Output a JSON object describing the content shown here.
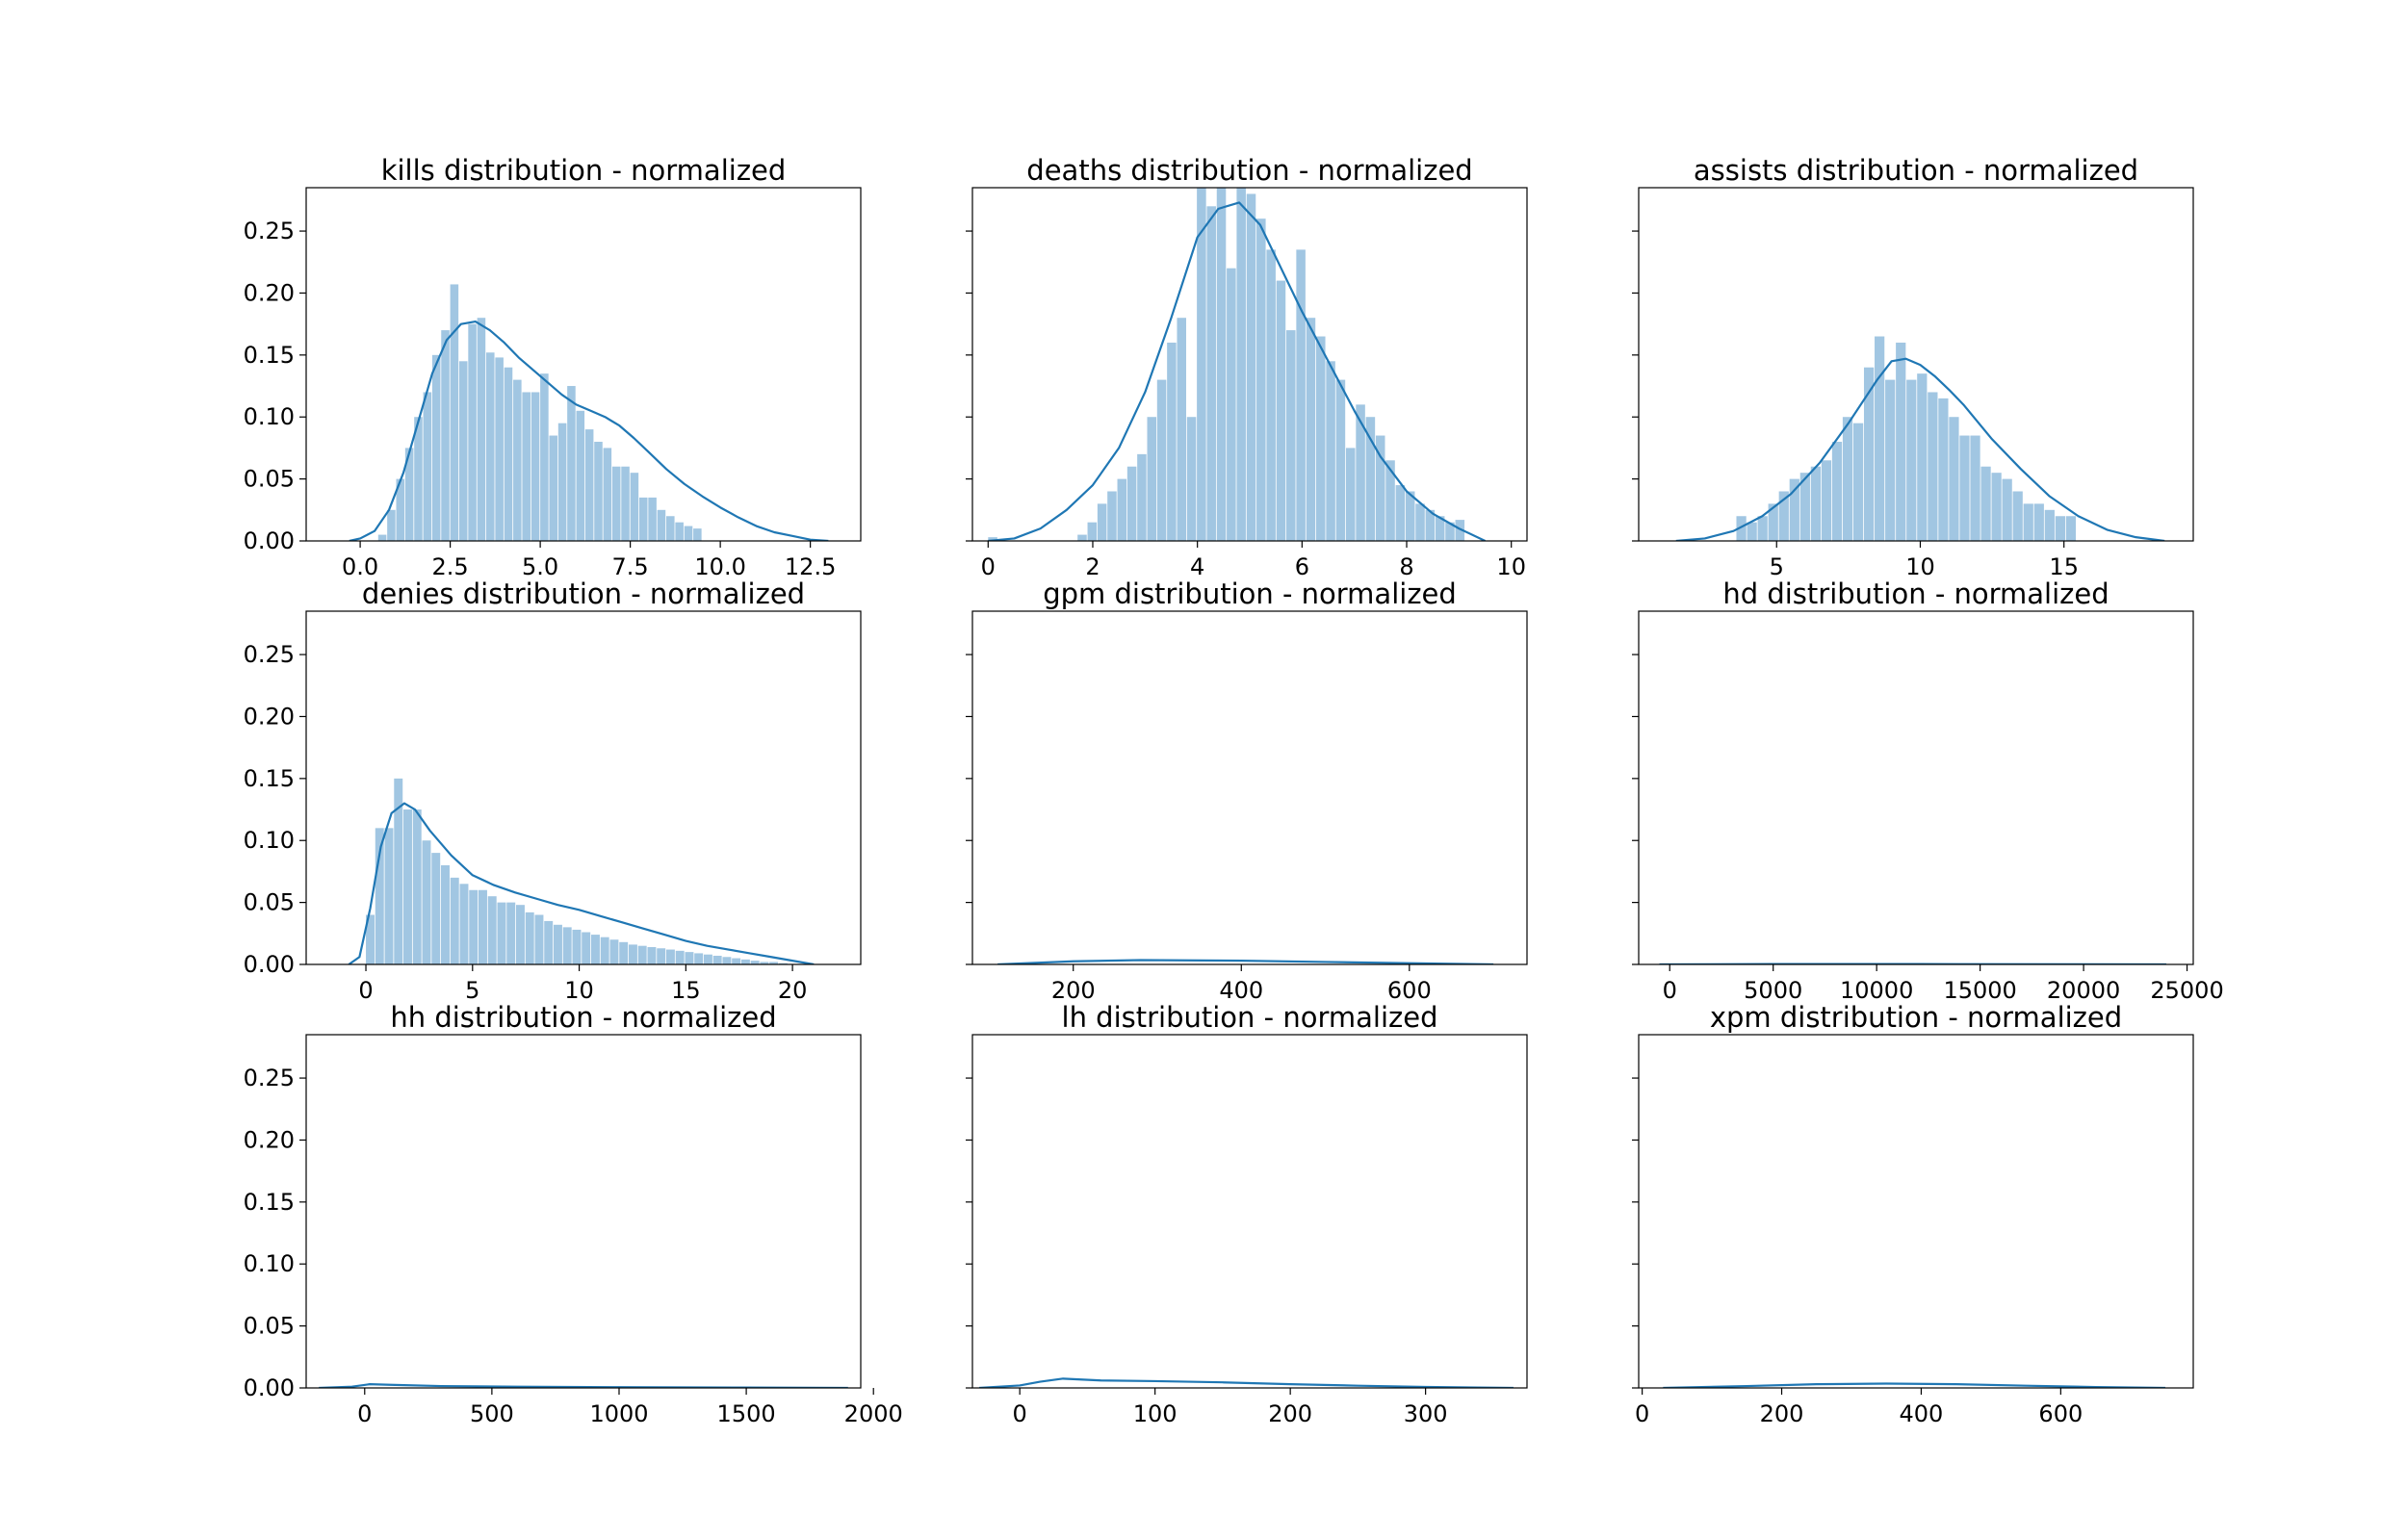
{
  "chart_data": [
    {
      "type": "histogram",
      "title": "kills distribution - normalized",
      "xlim": [
        -1.5,
        13.9
      ],
      "ylim": [
        0,
        0.285
      ],
      "xticks": [
        0,
        2.5,
        5,
        7.5,
        10,
        12.5
      ],
      "xtick_labels": [
        "0.0",
        "2.5",
        "5.0",
        "7.5",
        "10.0",
        "12.5"
      ],
      "yticks": [
        0,
        0.05,
        0.1,
        0.15,
        0.2,
        0.25
      ],
      "ytick_labels": [
        "0.00",
        "0.05",
        "0.10",
        "0.15",
        "0.20",
        "0.25"
      ],
      "bins": {
        "start": 0.5,
        "width": 0.25,
        "heights": [
          0.005,
          0.025,
          0.05,
          0.075,
          0.1,
          0.12,
          0.15,
          0.17,
          0.207,
          0.145,
          0.175,
          0.18,
          0.152,
          0.148,
          0.14,
          0.13,
          0.12,
          0.12,
          0.135,
          0.085,
          0.095,
          0.125,
          0.105,
          0.09,
          0.08,
          0.075,
          0.06,
          0.06,
          0.055,
          0.035,
          0.035,
          0.025,
          0.02,
          0.015,
          0.012,
          0.01
        ]
      },
      "kde": {
        "x": [
          -0.3,
          0.0,
          0.4,
          0.8,
          1.2,
          1.6,
          2.0,
          2.4,
          2.8,
          3.2,
          3.6,
          4.0,
          4.4,
          4.8,
          5.2,
          5.6,
          6.0,
          6.4,
          6.8,
          7.2,
          7.6,
          8.0,
          8.5,
          9.0,
          9.5,
          10.0,
          10.5,
          11.0,
          11.5,
          12.0,
          12.5,
          13.0
        ],
        "y": [
          0.0,
          0.002,
          0.008,
          0.025,
          0.055,
          0.095,
          0.135,
          0.162,
          0.175,
          0.177,
          0.17,
          0.16,
          0.148,
          0.138,
          0.128,
          0.118,
          0.11,
          0.105,
          0.1,
          0.093,
          0.083,
          0.072,
          0.058,
          0.046,
          0.036,
          0.027,
          0.019,
          0.012,
          0.007,
          0.004,
          0.001,
          0.0
        ]
      }
    },
    {
      "type": "histogram",
      "title": "deaths distribution - normalized",
      "xlim": [
        -0.3,
        10.3
      ],
      "ylim": [
        0,
        0.285
      ],
      "xticks": [
        0,
        2,
        4,
        6,
        8,
        10
      ],
      "xtick_labels": [
        "0",
        "2",
        "4",
        "6",
        "8",
        "10"
      ],
      "yticks": [
        0,
        0.05,
        0.1,
        0.15,
        0.2,
        0.25
      ],
      "ytick_labels": [
        "",
        "",
        "",
        "",
        "",
        ""
      ],
      "bins": {
        "start": 0.0,
        "width": 0.19,
        "heights": [
          0.003,
          0.0,
          0.0,
          0.0,
          0.0,
          0.0,
          0.0,
          0.0,
          0.0,
          0.005,
          0.015,
          0.03,
          0.04,
          0.05,
          0.06,
          0.07,
          0.1,
          0.13,
          0.16,
          0.18,
          0.1,
          0.29,
          0.27,
          0.29,
          0.22,
          0.285,
          0.28,
          0.26,
          0.235,
          0.21,
          0.17,
          0.235,
          0.18,
          0.165,
          0.145,
          0.13,
          0.075,
          0.11,
          0.1,
          0.085,
          0.065,
          0.045,
          0.04,
          0.03,
          0.025,
          0.02,
          0.015,
          0.017
        ],
        "bin_range": [
          0.0,
          9.3
        ]
      },
      "kde": {
        "x": [
          0.0,
          0.5,
          1.0,
          1.5,
          2.0,
          2.5,
          3.0,
          3.5,
          4.0,
          4.4,
          4.8,
          5.2,
          5.6,
          6.0,
          6.5,
          7.0,
          7.5,
          8.0,
          8.5,
          9.0,
          9.5
        ],
        "y": [
          0.0,
          0.002,
          0.01,
          0.025,
          0.045,
          0.075,
          0.12,
          0.18,
          0.245,
          0.268,
          0.273,
          0.255,
          0.22,
          0.185,
          0.145,
          0.105,
          0.068,
          0.04,
          0.022,
          0.01,
          0.0
        ]
      }
    },
    {
      "type": "histogram",
      "title": "assists distribution - normalized",
      "xlim": [
        0.2,
        19.5
      ],
      "ylim": [
        0,
        0.285
      ],
      "xticks": [
        5,
        10,
        15
      ],
      "xtick_labels": [
        "5",
        "10",
        "15"
      ],
      "yticks": [
        0,
        0.05,
        0.1,
        0.15,
        0.2,
        0.25
      ],
      "ytick_labels": [
        "",
        "",
        "",
        "",
        "",
        ""
      ],
      "bins": {
        "start": 3.6,
        "width": 0.37,
        "heights": [
          0.02,
          0.015,
          0.02,
          0.03,
          0.04,
          0.05,
          0.055,
          0.06,
          0.065,
          0.08,
          0.1,
          0.095,
          0.14,
          0.165,
          0.13,
          0.16,
          0.13,
          0.135,
          0.12,
          0.115,
          0.1,
          0.085,
          0.085,
          0.06,
          0.055,
          0.05,
          0.04,
          0.03,
          0.03,
          0.025,
          0.02,
          0.02
        ],
        "bin_range": [
          3.6,
          15.5
        ]
      },
      "kde": {
        "x": [
          1.5,
          2.5,
          3.5,
          4.5,
          5.5,
          6.5,
          7.5,
          8.5,
          9.0,
          9.5,
          10.0,
          10.5,
          11.0,
          11.5,
          12.5,
          13.5,
          14.5,
          15.5,
          16.5,
          17.5,
          18.5
        ],
        "y": [
          0.0,
          0.002,
          0.008,
          0.02,
          0.038,
          0.063,
          0.095,
          0.13,
          0.145,
          0.147,
          0.142,
          0.133,
          0.122,
          0.11,
          0.082,
          0.058,
          0.036,
          0.02,
          0.009,
          0.003,
          0.0
        ]
      }
    },
    {
      "type": "histogram",
      "title": "denies distribution - normalized",
      "xlim": [
        -2.8,
        23.2
      ],
      "ylim": [
        0,
        0.285
      ],
      "xticks": [
        0,
        5,
        10,
        15,
        20
      ],
      "xtick_labels": [
        "0",
        "5",
        "10",
        "15",
        "20"
      ],
      "yticks": [
        0,
        0.05,
        0.1,
        0.15,
        0.2,
        0.25
      ],
      "ytick_labels": [
        "0.00",
        "0.05",
        "0.10",
        "0.15",
        "0.20",
        "0.25"
      ],
      "bins": {
        "start": 0.0,
        "width": 0.44,
        "heights": [
          0.04,
          0.11,
          0.11,
          0.15,
          0.125,
          0.125,
          0.1,
          0.09,
          0.08,
          0.07,
          0.065,
          0.06,
          0.06,
          0.055,
          0.05,
          0.05,
          0.048,
          0.042,
          0.04,
          0.035,
          0.032,
          0.03,
          0.028,
          0.026,
          0.024,
          0.022,
          0.02,
          0.018,
          0.016,
          0.015,
          0.014,
          0.013,
          0.012,
          0.011,
          0.01,
          0.009,
          0.008,
          0.007,
          0.006,
          0.005,
          0.004,
          0.003,
          0.002,
          0.002,
          0.001
        ],
        "bin_range": [
          0.0,
          19.8
        ]
      },
      "kde": {
        "x": [
          -0.8,
          -0.3,
          0.2,
          0.7,
          1.2,
          1.8,
          2.3,
          3.0,
          4.0,
          5.0,
          6.0,
          7.0,
          8.0,
          9.0,
          10.0,
          11.0,
          12.0,
          13.0,
          14.0,
          15.0,
          16.0,
          17.0,
          18.0,
          19.0,
          20.0,
          21.0
        ],
        "y": [
          0.0,
          0.006,
          0.045,
          0.095,
          0.122,
          0.13,
          0.125,
          0.108,
          0.088,
          0.072,
          0.064,
          0.058,
          0.053,
          0.048,
          0.044,
          0.039,
          0.034,
          0.029,
          0.024,
          0.019,
          0.015,
          0.012,
          0.009,
          0.006,
          0.003,
          0.0
        ]
      }
    },
    {
      "type": "histogram",
      "title": "gpm distribution - normalized",
      "xlim": [
        80,
        740
      ],
      "ylim": [
        0,
        0.285
      ],
      "xticks": [
        200,
        400,
        600
      ],
      "xtick_labels": [
        "200",
        "400",
        "600"
      ],
      "yticks": [
        0,
        0.05,
        0.1,
        0.15,
        0.2,
        0.25
      ],
      "ytick_labels": [
        "",
        "",
        "",
        "",
        "",
        ""
      ],
      "kde": {
        "x": [
          110,
          200,
          280,
          400,
          500,
          600,
          700
        ],
        "y": [
          0.0,
          0.0025,
          0.0035,
          0.003,
          0.002,
          0.001,
          0.0
        ]
      }
    },
    {
      "type": "histogram",
      "title": "hd distribution - normalized",
      "xlim": [
        -1500,
        25300
      ],
      "ylim": [
        0,
        0.285
      ],
      "xticks": [
        0,
        5000,
        10000,
        15000,
        20000,
        25000
      ],
      "xtick_labels": [
        "0",
        "5000",
        "10000",
        "15000",
        "20000",
        "25000"
      ],
      "yticks": [
        0,
        0.05,
        0.1,
        0.15,
        0.2,
        0.25
      ],
      "ytick_labels": [
        "",
        "",
        "",
        "",
        "",
        ""
      ],
      "kde": {
        "x": [
          -500,
          5000,
          12000,
          20000,
          24000
        ],
        "y": [
          0.0,
          0.0003,
          0.0003,
          0.0001,
          0.0
        ]
      }
    },
    {
      "type": "histogram",
      "title": "hh distribution - normalized",
      "xlim": [
        -230,
        1950
      ],
      "ylim": [
        0,
        0.285
      ],
      "xticks": [
        0,
        500,
        1000,
        1500,
        2000
      ],
      "xtick_labels": [
        "0",
        "500",
        "1000",
        "1500",
        "2000"
      ],
      "yticks": [
        0,
        0.05,
        0.1,
        0.15,
        0.2,
        0.25
      ],
      "ytick_labels": [
        "0.00",
        "0.05",
        "0.10",
        "0.15",
        "0.20",
        "0.25"
      ],
      "kde": {
        "x": [
          -180,
          -50,
          20,
          100,
          300,
          600,
          1000,
          1500,
          1900
        ],
        "y": [
          0.0,
          0.001,
          0.003,
          0.0025,
          0.0015,
          0.001,
          0.0006,
          0.0003,
          0.0
        ]
      }
    },
    {
      "type": "histogram",
      "title": "lh distribution - normalized",
      "xlim": [
        -35,
        375
      ],
      "ylim": [
        0,
        0.285
      ],
      "xticks": [
        0,
        100,
        200,
        300
      ],
      "xtick_labels": [
        "0",
        "100",
        "200",
        "300"
      ],
      "yticks": [
        0,
        0.05,
        0.1,
        0.15,
        0.2,
        0.25
      ],
      "ytick_labels": [
        "",
        "",
        "",
        "",
        "",
        ""
      ],
      "kde": {
        "x": [
          -30,
          0,
          15,
          32,
          60,
          100,
          150,
          200,
          250,
          300,
          365
        ],
        "y": [
          0.0,
          0.002,
          0.005,
          0.0075,
          0.006,
          0.0055,
          0.0045,
          0.003,
          0.0018,
          0.0008,
          0.0
        ]
      }
    },
    {
      "type": "histogram",
      "title": "xpm distribution - normalized",
      "xlim": [
        -5,
        790
      ],
      "ylim": [
        0,
        0.285
      ],
      "xticks": [
        0,
        200,
        400,
        600
      ],
      "xtick_labels": [
        "0",
        "200",
        "400",
        "600"
      ],
      "yticks": [
        0,
        0.05,
        0.1,
        0.15,
        0.2,
        0.25
      ],
      "ytick_labels": [
        "",
        "",
        "",
        "",
        "",
        ""
      ],
      "kde": {
        "x": [
          30,
          150,
          250,
          350,
          450,
          550,
          650,
          750
        ],
        "y": [
          0.0,
          0.0015,
          0.003,
          0.0035,
          0.003,
          0.0018,
          0.0007,
          0.0
        ]
      }
    }
  ],
  "colors": {
    "bar": "#a1c6e2",
    "line": "#1f77b4",
    "axes": "#000000"
  }
}
